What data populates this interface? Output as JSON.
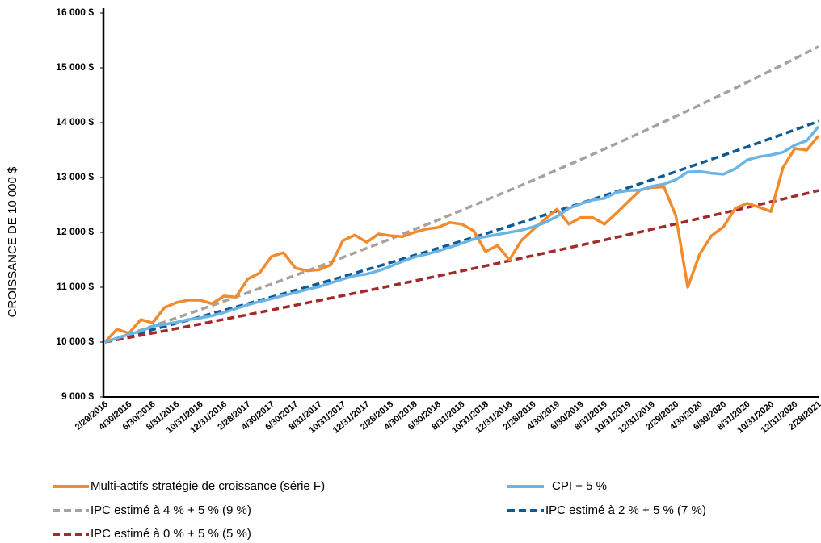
{
  "chart_data": {
    "type": "line",
    "y_label": "CROISSANCE DE 10 000 $",
    "categories": [
      "2/29/2016",
      null,
      "4/30/2016",
      null,
      "6/30/2016",
      null,
      "8/31/2016",
      null,
      "10/31/2016",
      null,
      "12/31/2016",
      null,
      "2/28/2017",
      null,
      "4/30/2017",
      null,
      "6/30/2017",
      null,
      "8/31/2017",
      null,
      "10/31/2017",
      null,
      "12/31/2017",
      null,
      "2/28/2018",
      null,
      "4/30/2018",
      null,
      "6/30/2018",
      null,
      "8/31/2018",
      null,
      "10/31/2018",
      null,
      "12/31/2018",
      null,
      "2/28/2019",
      null,
      "4/30/2019",
      null,
      "6/30/2019",
      null,
      "8/31/2019",
      null,
      "10/31/2019",
      null,
      "12/31/2019",
      null,
      "2/29/2020",
      null,
      "4/30/2020",
      null,
      "6/30/2020",
      null,
      "8/31/2020",
      null,
      "10/31/2020",
      null,
      "12/31/2020",
      null,
      "2/28/2021"
    ],
    "ylim": [
      9000,
      16000
    ],
    "yticks": [
      {
        "value": 9000,
        "label": "9 000 $"
      },
      {
        "value": 10000,
        "label": "10 000 $"
      },
      {
        "value": 11000,
        "label": "11 000 $"
      },
      {
        "value": 12000,
        "label": "12 000 $"
      },
      {
        "value": 13000,
        "label": "13 000 $"
      },
      {
        "value": 14000,
        "label": "14 000 $"
      },
      {
        "value": 15000,
        "label": "15 000 $"
      },
      {
        "value": 16000,
        "label": "16 000 $"
      }
    ],
    "grid": false,
    "series": [
      {
        "name": "Multi-actifs stratégie de croissance (série F)",
        "color": "#f28a2e",
        "dashed": false,
        "values": [
          10000,
          10235,
          10160,
          10410,
          10350,
          10630,
          10720,
          10765,
          10765,
          10700,
          10840,
          10820,
          11150,
          11260,
          11560,
          11630,
          11350,
          11300,
          11320,
          11410,
          11850,
          11950,
          11820,
          11970,
          11940,
          11920,
          12000,
          12060,
          12090,
          12180,
          12150,
          12030,
          11650,
          11760,
          11500,
          11850,
          12050,
          12240,
          12420,
          12150,
          12270,
          12270,
          12150,
          12350,
          12560,
          12770,
          12820,
          12830,
          12300,
          11000,
          11600,
          11940,
          12100,
          12440,
          12530,
          12460,
          12380,
          13180,
          13530,
          13500,
          13760
        ]
      },
      {
        "name": "CPI + 5 %",
        "color": "#6cb4e4",
        "dashed": false,
        "values": [
          10000,
          10070,
          10140,
          10200,
          10290,
          10320,
          10360,
          10410,
          10440,
          10480,
          10540,
          10610,
          10680,
          10740,
          10790,
          10850,
          10900,
          10960,
          11010,
          11080,
          11150,
          11210,
          11240,
          11300,
          11380,
          11470,
          11550,
          11600,
          11660,
          11730,
          11800,
          11880,
          11920,
          11960,
          12000,
          12040,
          12100,
          12180,
          12290,
          12440,
          12520,
          12590,
          12620,
          12730,
          12760,
          12770,
          12840,
          12880,
          12960,
          13100,
          13110,
          13080,
          13060,
          13160,
          13320,
          13380,
          13410,
          13460,
          13590,
          13670,
          13930
        ]
      },
      {
        "name": "IPC estimé à 4 % + 5 % (9 %)",
        "color": "#a8a29e",
        "dashed": true,
        "values": [
          10000,
          10072,
          10145,
          10218,
          10292,
          10366,
          10440,
          10516,
          10591,
          10668,
          10745,
          10822,
          10900,
          10979,
          11058,
          11138,
          11218,
          11299,
          11380,
          11462,
          11544,
          11628,
          11712,
          11796,
          11881,
          11967,
          12053,
          12140,
          12228,
          12316,
          12405,
          12494,
          12584,
          12675,
          12766,
          12858,
          12950,
          13044,
          13138,
          13232,
          13328,
          13424,
          13521,
          13617,
          13715,
          13814,
          13914,
          14014,
          14116,
          14218,
          14320,
          14423,
          14527,
          14632,
          14737,
          14844,
          14951,
          15058,
          15167,
          15276,
          15386
        ]
      },
      {
        "name": "IPC estimé à 2 % + 5 % (7 %)",
        "color": "#0e5a96",
        "dashed": true,
        "values": [
          10000,
          10057,
          10113,
          10170,
          10228,
          10286,
          10344,
          10402,
          10461,
          10520,
          10580,
          10640,
          10700,
          10760,
          10821,
          10882,
          10944,
          11006,
          11068,
          11131,
          11193,
          11257,
          11320,
          11384,
          11449,
          11513,
          11579,
          11644,
          11710,
          11776,
          11843,
          11910,
          11977,
          12045,
          12113,
          12181,
          12250,
          12319,
          12389,
          12459,
          12530,
          12600,
          12672,
          12743,
          12815,
          12888,
          12961,
          13034,
          13108,
          13182,
          13257,
          13332,
          13407,
          13483,
          13559,
          13636,
          13713,
          13791,
          13869,
          13947,
          14026
        ]
      },
      {
        "name": "IPC estimé à 0 % + 5 % (5 %)",
        "color": "#a32a2a",
        "dashed": true,
        "values": [
          10000,
          10041,
          10082,
          10123,
          10164,
          10205,
          10247,
          10288,
          10330,
          10372,
          10415,
          10457,
          10500,
          10543,
          10586,
          10629,
          10672,
          10716,
          10759,
          10803,
          10847,
          10891,
          10936,
          10980,
          11025,
          11070,
          11115,
          11160,
          11206,
          11251,
          11297,
          11343,
          11390,
          11436,
          11483,
          11529,
          11576,
          11624,
          11671,
          11719,
          11766,
          11814,
          11862,
          11911,
          11959,
          12008,
          12057,
          12106,
          12155,
          12205,
          12255,
          12305,
          12355,
          12405,
          12455,
          12506,
          12557,
          12608,
          12660,
          12711,
          12763
        ]
      }
    ]
  }
}
